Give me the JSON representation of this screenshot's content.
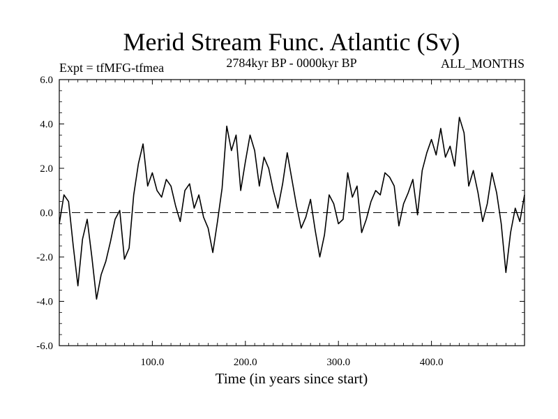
{
  "chart_data": {
    "type": "line",
    "title": "Merid Stream Func. Atlantic (Sv)",
    "subtitle_left": "Expt = tfMFG-tfmea",
    "subtitle_center": "2784kyr BP - 0000kyr BP",
    "subtitle_right": "ALL_MONTHS",
    "xlabel": "Time (in years since start)",
    "ylabel": "",
    "xlim": [
      0,
      500
    ],
    "ylim": [
      -6,
      6
    ],
    "x_ticks": [
      100,
      200,
      300,
      400
    ],
    "x_tick_labels": [
      "100.0",
      "200.0",
      "300.0",
      "400.0"
    ],
    "y_ticks": [
      -6,
      -4,
      -2,
      0,
      2,
      4,
      6
    ],
    "y_tick_labels": [
      "-6.0",
      "-4.0",
      "-2.0",
      "0.0",
      "2.0",
      "4.0",
      "6.0"
    ],
    "reference_line": {
      "y": 0,
      "style": "dashed"
    },
    "series": [
      {
        "name": "Merid Stream Func. Atlantic",
        "x": [
          0,
          5,
          10,
          15,
          20,
          25,
          30,
          35,
          40,
          45,
          50,
          55,
          60,
          65,
          70,
          75,
          80,
          85,
          90,
          95,
          100,
          105,
          110,
          115,
          120,
          125,
          130,
          135,
          140,
          145,
          150,
          155,
          160,
          165,
          170,
          175,
          180,
          185,
          190,
          195,
          200,
          205,
          210,
          215,
          220,
          225,
          230,
          235,
          240,
          245,
          250,
          255,
          260,
          265,
          270,
          275,
          280,
          285,
          290,
          295,
          300,
          305,
          310,
          315,
          320,
          325,
          330,
          335,
          340,
          345,
          350,
          355,
          360,
          365,
          370,
          375,
          380,
          385,
          390,
          395,
          400,
          405,
          410,
          415,
          420,
          425,
          430,
          435,
          440,
          445,
          450,
          455,
          460,
          465,
          470,
          475,
          480,
          485,
          490,
          495,
          500
        ],
        "values": [
          -0.5,
          0.8,
          0.5,
          -1.5,
          -3.3,
          -1.2,
          -0.3,
          -2.0,
          -3.9,
          -2.8,
          -2.2,
          -1.3,
          -0.3,
          0.1,
          -2.1,
          -1.6,
          0.8,
          2.2,
          3.1,
          1.2,
          1.8,
          1.0,
          0.7,
          1.5,
          1.2,
          0.3,
          -0.4,
          1.0,
          1.3,
          0.2,
          0.8,
          -0.2,
          -0.7,
          -1.8,
          -0.4,
          1.1,
          3.9,
          2.8,
          3.5,
          1.0,
          2.3,
          3.5,
          2.8,
          1.2,
          2.5,
          2.0,
          1.0,
          0.2,
          1.3,
          2.7,
          1.5,
          0.3,
          -0.7,
          -0.2,
          0.6,
          -0.8,
          -2.0,
          -1.0,
          0.8,
          0.4,
          -0.5,
          -0.3,
          1.8,
          0.7,
          1.2,
          -0.9,
          -0.3,
          0.5,
          1.0,
          0.8,
          1.8,
          1.6,
          1.2,
          -0.6,
          0.4,
          0.9,
          1.5,
          -0.1,
          1.9,
          2.7,
          3.3,
          2.6,
          3.8,
          2.5,
          3.0,
          2.1,
          4.3,
          3.6,
          1.2,
          1.9,
          0.9,
          -0.4,
          0.4,
          1.8,
          0.9,
          -0.5,
          -2.7,
          -0.9,
          0.2,
          -0.4,
          0.8
        ]
      }
    ]
  }
}
